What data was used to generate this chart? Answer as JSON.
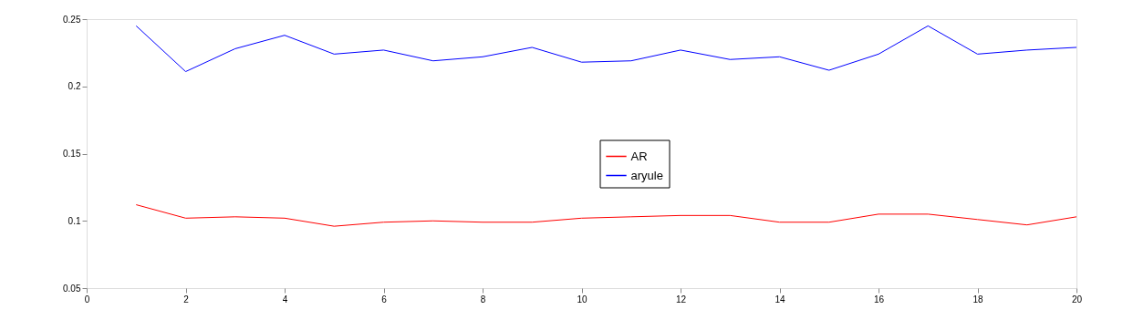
{
  "chart_data": {
    "type": "line",
    "x": [
      1,
      2,
      3,
      4,
      5,
      6,
      7,
      8,
      9,
      10,
      11,
      12,
      13,
      14,
      15,
      16,
      17,
      18,
      19,
      20
    ],
    "series": [
      {
        "name": "AR",
        "color": "#ff0000",
        "values": [
          0.112,
          0.102,
          0.103,
          0.102,
          0.096,
          0.099,
          0.1,
          0.099,
          0.099,
          0.102,
          0.103,
          0.104,
          0.104,
          0.099,
          0.099,
          0.105,
          0.105,
          0.101,
          0.097,
          0.103
        ]
      },
      {
        "name": "aryule",
        "color": "#0000ff",
        "values": [
          0.245,
          0.211,
          0.228,
          0.238,
          0.224,
          0.227,
          0.219,
          0.222,
          0.229,
          0.218,
          0.219,
          0.227,
          0.22,
          0.222,
          0.212,
          0.224,
          0.245,
          0.224,
          0.227,
          0.229
        ]
      }
    ],
    "xlim": [
      0,
      20
    ],
    "xticks": [
      0,
      2,
      4,
      6,
      8,
      10,
      12,
      14,
      16,
      18,
      20
    ],
    "ylim": [
      0.05,
      0.25
    ],
    "yticks": [
      0.05,
      0.1,
      0.15,
      0.2,
      0.25
    ],
    "grid": false,
    "legend": "center",
    "marker": "none",
    "line_style": "solid"
  }
}
